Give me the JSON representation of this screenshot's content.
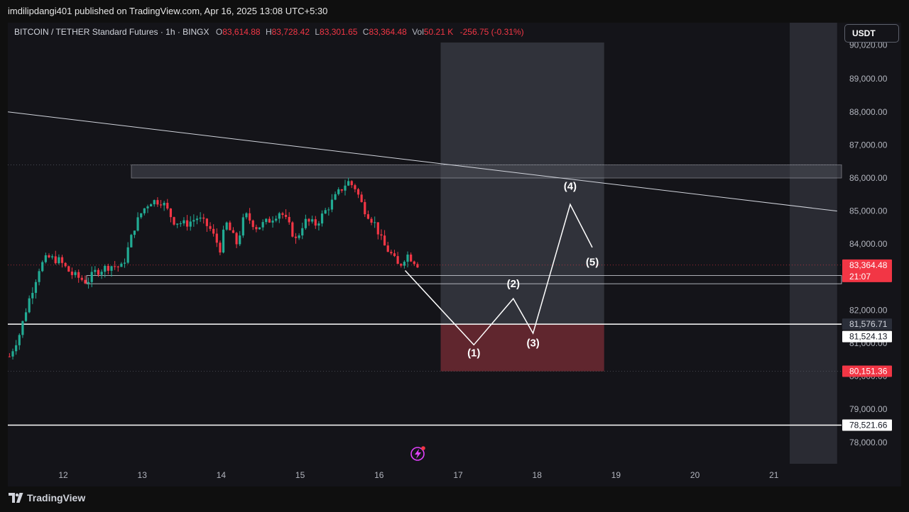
{
  "header": {
    "publish_line": "imdilipdangi401 published on TradingView.com, Apr 16, 2025 13:08 UTC+5:30"
  },
  "legend": {
    "symbol": "BITCOIN / TETHER Standard Futures · 1h · BINGX",
    "open_label": "O",
    "open": "83,614.88",
    "high_label": "H",
    "high": "83,728.42",
    "low_label": "L",
    "low": "83,301.65",
    "close_label": "C",
    "close": "83,364.48",
    "vol_label": "Vol",
    "vol": "50.21 K",
    "change": "-256.75 (-0.31%)"
  },
  "currency_button": "USDT",
  "price_axis": {
    "ticks": [
      "90,020.00",
      "89,000.00",
      "88,000.00",
      "87,000.00",
      "86,000.00",
      "85,000.00",
      "84,000.00",
      "82,000.00",
      "81,000.00",
      "80,000.00",
      "79,000.00",
      "78,000.00"
    ],
    "labels": {
      "last_price": "83,364.48",
      "countdown": "21:07",
      "level_1": "81,576.71",
      "level_2": "81,524.13",
      "stop": "80,151.36",
      "support": "78,521.66"
    }
  },
  "time_axis": {
    "ticks": [
      "12",
      "13",
      "14",
      "15",
      "16",
      "17",
      "18",
      "19",
      "20",
      "21"
    ]
  },
  "waves": {
    "w1": "(1)",
    "w2": "(2)",
    "w3": "(3)",
    "w4": "(4)",
    "w5": "(5)"
  },
  "colors": {
    "up": "#22ab94",
    "down": "#f23645",
    "accent_box": "#f23645",
    "background": "#141419"
  },
  "footer": {
    "brand": "TradingView"
  },
  "chart_data": {
    "type": "candlestick",
    "title": "BITCOIN / TETHER Standard Futures",
    "interval": "1h",
    "exchange": "BINGX",
    "x_unit": "day of April 2025",
    "xlim": [
      11.3,
      21.8
    ],
    "ylim": [
      77600,
      90150
    ],
    "grid": false,
    "close_path": [
      [
        11.32,
        80600
      ],
      [
        11.45,
        81300
      ],
      [
        11.55,
        82200
      ],
      [
        11.62,
        82700
      ],
      [
        11.7,
        83300
      ],
      [
        11.8,
        83600
      ],
      [
        11.95,
        83500
      ],
      [
        12.1,
        83100
      ],
      [
        12.3,
        82850
      ],
      [
        12.4,
        83150
      ],
      [
        12.6,
        83350
      ],
      [
        12.75,
        83300
      ],
      [
        12.9,
        84500
      ],
      [
        13.0,
        85000
      ],
      [
        13.1,
        85300
      ],
      [
        13.25,
        85300
      ],
      [
        13.4,
        84700
      ],
      [
        13.55,
        84600
      ],
      [
        13.7,
        84800
      ],
      [
        13.85,
        84500
      ],
      [
        14.0,
        83800
      ],
      [
        14.05,
        84700
      ],
      [
        14.2,
        84000
      ],
      [
        14.3,
        84900
      ],
      [
        14.45,
        84500
      ],
      [
        14.6,
        84700
      ],
      [
        14.75,
        85000
      ],
      [
        14.85,
        84600
      ],
      [
        14.95,
        84100
      ],
      [
        15.05,
        84700
      ],
      [
        15.2,
        84600
      ],
      [
        15.35,
        85100
      ],
      [
        15.5,
        85600
      ],
      [
        15.6,
        85900
      ],
      [
        15.7,
        85700
      ],
      [
        15.8,
        85100
      ],
      [
        15.95,
        84600
      ],
      [
        16.05,
        84000
      ],
      [
        16.15,
        83700
      ],
      [
        16.25,
        83300
      ],
      [
        16.35,
        83700
      ],
      [
        16.5,
        83364.48
      ]
    ],
    "levels": [
      {
        "price": 86400,
        "price_to": 86000,
        "kind": "resistance zone"
      },
      {
        "price": 83050,
        "price_to": 82800,
        "kind": "support zone"
      },
      {
        "price": 81576.71,
        "kind": "horizontal level"
      },
      {
        "price": 80151.36,
        "kind": "stop level"
      },
      {
        "price": 78521.66,
        "kind": "horizontal level"
      }
    ],
    "trendline": {
      "from": [
        11.3,
        88000
      ],
      "to": [
        21.8,
        85000
      ]
    },
    "projection_box": {
      "x_from": 16.78,
      "x_to": 18.85,
      "y_from": 80151.36,
      "y_to": 90100,
      "red_top": 81576.71
    },
    "wave_path": [
      [
        16.33,
        83200
      ],
      [
        17.2,
        80950
      ],
      [
        17.7,
        82350
      ],
      [
        17.95,
        81300
      ],
      [
        18.42,
        85200
      ],
      [
        18.7,
        83900
      ]
    ],
    "wave_labels": [
      {
        "text": "(1)",
        "x": 17.2,
        "y": 80600
      },
      {
        "text": "(2)",
        "x": 17.7,
        "y": 82700
      },
      {
        "text": "(3)",
        "x": 17.95,
        "y": 80900
      },
      {
        "text": "(4)",
        "x": 18.42,
        "y": 85650
      },
      {
        "text": "(5)",
        "x": 18.7,
        "y": 83350
      }
    ],
    "future_shade": {
      "x_from": 21.2,
      "x_to": 21.8
    }
  }
}
